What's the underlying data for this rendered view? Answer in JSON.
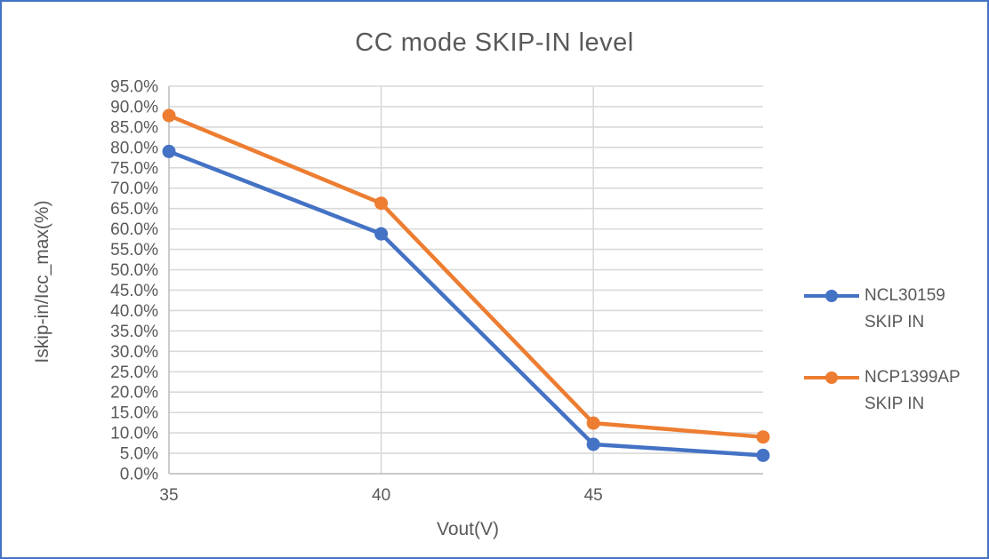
{
  "frame": {
    "border_color": "#4472C4",
    "background": "#FFFFFF"
  },
  "chart_data": {
    "type": "line",
    "title": "CC mode SKIP-IN level",
    "xlabel": "Vout(V)",
    "ylabel": "Iskip-in/Icc_max(%)",
    "x": [
      35,
      40,
      45,
      49
    ],
    "series": [
      {
        "name": "NCL30159 SKIP IN",
        "legend_lines": [
          "NCL30159",
          "SKIP IN"
        ],
        "color": "#4472C4",
        "values": [
          79.0,
          58.8,
          7.2,
          4.5
        ]
      },
      {
        "name": "NCP1399AP SKIP IN",
        "legend_lines": [
          "NCP1399AP",
          "SKIP IN"
        ],
        "color": "#ED7D31",
        "values": [
          87.8,
          66.3,
          12.4,
          9.0
        ]
      }
    ],
    "x_range": [
      35,
      49
    ],
    "y_range": [
      0,
      95
    ],
    "x_tick_values": [
      35,
      40,
      45
    ],
    "x_tick_labels": [
      "35",
      "40",
      "45"
    ],
    "y_tick_values": [
      0,
      5,
      10,
      15,
      20,
      25,
      30,
      35,
      40,
      45,
      50,
      55,
      60,
      65,
      70,
      75,
      80,
      85,
      90,
      95
    ],
    "y_tick_labels": [
      "0.0%",
      "5.0%",
      "10.0%",
      "15.0%",
      "20.0%",
      "25.0%",
      "30.0%",
      "35.0%",
      "40.0%",
      "45.0%",
      "50.0%",
      "55.0%",
      "60.0%",
      "65.0%",
      "70.0%",
      "75.0%",
      "80.0%",
      "85.0%",
      "90.0%",
      "95.0%"
    ],
    "grid": true,
    "legend_position": "right",
    "grid_color": "#D9D9D9",
    "axis_line_color": "#BFBFBF",
    "text_color": "#595959",
    "marker": "circle"
  }
}
